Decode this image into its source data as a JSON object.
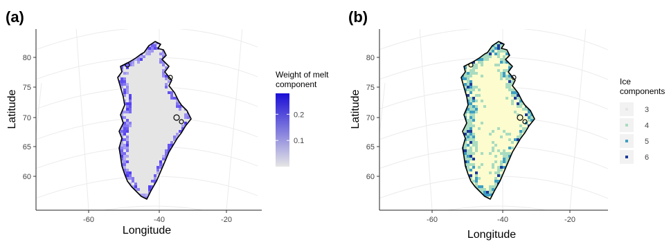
{
  "chart_data": [
    {
      "type": "heatmap",
      "panel_label": "(a)",
      "xlabel": "Longitude",
      "ylabel": "Latitude",
      "x_ticks": [
        -60,
        -40,
        -20
      ],
      "y_ticks": [
        60,
        65,
        70,
        75,
        80
      ],
      "legend": {
        "title_lines": [
          "Weight of melt",
          "component"
        ],
        "kind": "continuous",
        "range": [
          0,
          0.28
        ],
        "ticks": [
          0.1,
          0.2
        ],
        "tick_labels": [
          "0.1",
          "0.2"
        ],
        "colors": [
          "#e5e5e5",
          "#1a0fd6"
        ]
      }
    },
    {
      "type": "heatmap",
      "panel_label": "(b)",
      "xlabel": "Longitude",
      "ylabel": "Latitude",
      "x_ticks": [
        -60,
        -40,
        -20
      ],
      "y_ticks": [
        60,
        65,
        70,
        75,
        80
      ],
      "legend": {
        "title_lines": [
          "Ice",
          "components"
        ],
        "kind": "discrete",
        "items": [
          {
            "label": "3",
            "color": "#e5e5e5"
          },
          {
            "label": "4",
            "color": "#a9dcc0"
          },
          {
            "label": "5",
            "color": "#3e9fc4"
          },
          {
            "label": "6",
            "color": "#1d3a9a"
          }
        ],
        "fill_color": "#fcfcce"
      }
    }
  ]
}
